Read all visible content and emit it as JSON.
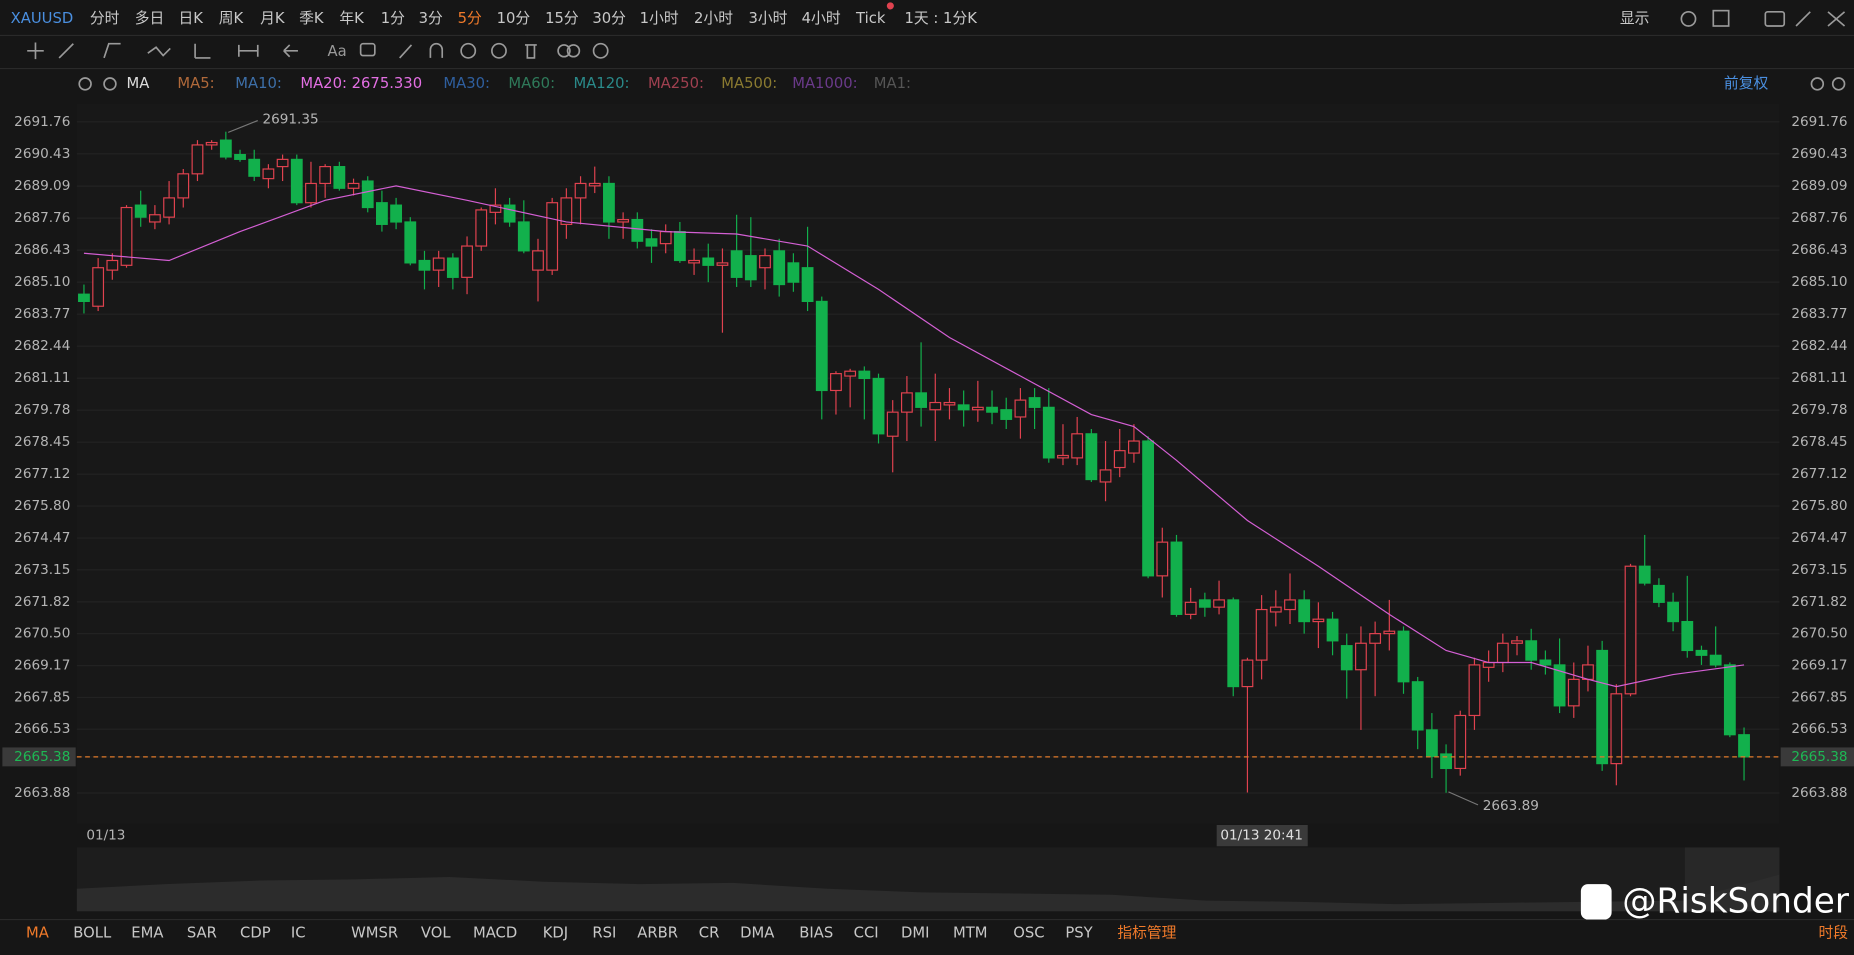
{
  "toolbar": {
    "symbol": "XAUUSD",
    "periods": [
      "分时",
      "多日",
      "日K",
      "周K",
      "月K",
      "季K",
      "年K",
      "1分",
      "3分",
      "5分",
      "10分",
      "15分",
      "30分",
      "1小时",
      "2小时",
      "3小时",
      "4小时",
      "Tick",
      "1天 : 1分K"
    ],
    "selected": "5分",
    "display": "显示",
    "font_tool": "Aa"
  },
  "ma_bar": {
    "name": "MA",
    "items": [
      {
        "text": "MA5:",
        "color": "#b0693a"
      },
      {
        "text": "MA10:",
        "color": "#3d6fa8"
      },
      {
        "text": "MA20: 2675.330",
        "color": "#e36fe3"
      },
      {
        "text": "MA30:",
        "color": "#2f5f9f"
      },
      {
        "text": "MA60:",
        "color": "#2f7a5a"
      },
      {
        "text": "MA120:",
        "color": "#2a8a8a"
      },
      {
        "text": "MA250:",
        "color": "#a04050"
      },
      {
        "text": "MA500:",
        "color": "#8a7a30"
      },
      {
        "text": "MA1000:",
        "color": "#6a3a8a"
      },
      {
        "text": "MA1:",
        "color": "#555555"
      }
    ],
    "adjust": "前复权"
  },
  "indicators": {
    "items": [
      "MA",
      "BOLL",
      "EMA",
      "SAR",
      "CDP",
      "IC",
      "WMSR",
      "VOL",
      "MACD",
      "KDJ",
      "RSI",
      "ARBR",
      "CR",
      "DMA",
      "BIAS",
      "CCI",
      "DMI",
      "MTM",
      "OSC",
      "PSY",
      "指标管理"
    ],
    "session": "时段"
  },
  "watermark": "@RiskSonder",
  "chart_data": {
    "type": "candlestick",
    "open": [
      2684.6,
      2684.1,
      2685.6,
      2685.8,
      2688.3,
      2687.6,
      2687.8,
      2688.6,
      2689.6,
      2690.8,
      2691.0,
      2690.4,
      2690.2,
      2689.4,
      2689.9,
      2690.2,
      2688.4,
      2689.2,
      2689.9,
      2689.0,
      2689.3,
      2688.4,
      2688.3,
      2687.6,
      2686.0,
      2685.6,
      2686.1,
      2685.3,
      2686.6,
      2688.0,
      2688.3,
      2687.6,
      2685.6,
      2685.6,
      2687.5,
      2688.6,
      2689.1,
      2689.2,
      2687.6,
      2687.7,
      2686.9,
      2686.7,
      2687.2,
      2685.9,
      2686.1,
      2685.8,
      2686.4,
      2686.2,
      2685.7,
      2686.4,
      2685.9,
      2685.7,
      2684.3,
      2680.6,
      2681.2,
      2681.4,
      2681.1,
      2678.7,
      2679.7,
      2680.5,
      2679.8,
      2680.0,
      2680.0,
      2679.8,
      2679.9,
      2679.8,
      2679.5,
      2680.3,
      2679.9,
      2677.8,
      2677.8,
      2678.8,
      2676.8,
      2677.4,
      2678.0,
      2678.5,
      2672.9,
      2674.3,
      2671.3,
      2671.9,
      2671.6,
      2671.9,
      2668.3,
      2669.4,
      2671.4,
      2671.5,
      2671.9,
      2671.0,
      2671.1,
      2670.0,
      2669.0,
      2670.1,
      2670.5,
      2670.6,
      2668.5,
      2666.5,
      2665.5,
      2664.9,
      2667.1,
      2669.1,
      2669.3,
      2670.1,
      2670.2,
      2669.4,
      2669.2,
      2667.5,
      2668.6,
      2669.8,
      2665.1,
      2668.0,
      2673.3,
      2672.5,
      2671.8,
      2671.0,
      2669.8,
      2669.6,
      2669.2,
      2666.3
    ],
    "high": [
      2685.0,
      2686.1,
      2686.3,
      2688.3,
      2688.9,
      2688.3,
      2689.3,
      2689.8,
      2691.0,
      2691.0,
      2691.35,
      2690.6,
      2690.6,
      2690.0,
      2690.4,
      2690.4,
      2690.1,
      2690.0,
      2690.1,
      2689.4,
      2689.5,
      2688.9,
      2688.6,
      2687.8,
      2686.4,
      2686.4,
      2686.3,
      2687.0,
      2688.2,
      2689.0,
      2688.6,
      2688.5,
      2686.9,
      2688.6,
      2689.0,
      2689.5,
      2689.9,
      2689.5,
      2688.0,
      2688.0,
      2687.3,
      2687.5,
      2687.6,
      2686.5,
      2686.7,
      2686.5,
      2687.9,
      2687.8,
      2686.5,
      2686.9,
      2686.3,
      2687.4,
      2684.5,
      2681.4,
      2681.5,
      2681.6,
      2681.3,
      2680.2,
      2681.2,
      2682.6,
      2681.3,
      2680.7,
      2680.6,
      2681.0,
      2680.6,
      2680.3,
      2680.7,
      2680.7,
      2680.7,
      2679.2,
      2679.5,
      2679.0,
      2678.5,
      2679.0,
      2679.2,
      2678.7,
      2674.9,
      2674.6,
      2672.4,
      2672.2,
      2672.7,
      2672.0,
      2669.5,
      2672.1,
      2672.3,
      2673.0,
      2672.3,
      2671.8,
      2671.4,
      2670.5,
      2670.8,
      2671.0,
      2671.9,
      2670.8,
      2668.7,
      2667.2,
      2665.9,
      2667.3,
      2669.5,
      2669.8,
      2670.5,
      2670.4,
      2670.7,
      2669.8,
      2670.3,
      2669.3,
      2670.0,
      2670.2,
      2668.4,
      2673.4,
      2674.6,
      2672.8,
      2672.2,
      2672.9,
      2670.0,
      2670.8,
      2669.3,
      2666.6
    ],
    "low": [
      2683.8,
      2683.9,
      2685.2,
      2685.7,
      2687.4,
      2687.3,
      2687.5,
      2688.2,
      2689.3,
      2690.6,
      2690.2,
      2690.1,
      2689.3,
      2689.0,
      2689.3,
      2688.3,
      2688.2,
      2688.6,
      2688.9,
      2688.7,
      2688.0,
      2687.2,
      2687.3,
      2685.8,
      2684.8,
      2684.9,
      2684.8,
      2684.6,
      2686.4,
      2687.5,
      2687.4,
      2686.3,
      2684.3,
      2685.4,
      2686.9,
      2687.5,
      2688.8,
      2686.9,
      2686.9,
      2686.5,
      2685.9,
      2686.3,
      2685.9,
      2685.4,
      2685.1,
      2683.0,
      2684.9,
      2684.9,
      2684.8,
      2684.5,
      2684.7,
      2683.9,
      2679.4,
      2679.6,
      2679.9,
      2679.4,
      2678.4,
      2677.2,
      2678.5,
      2679.1,
      2678.5,
      2679.4,
      2679.1,
      2679.3,
      2679.2,
      2679.0,
      2678.6,
      2679.0,
      2677.6,
      2677.5,
      2677.5,
      2676.8,
      2676.0,
      2677.0,
      2677.6,
      2672.8,
      2672.0,
      2671.2,
      2671.1,
      2671.2,
      2671.3,
      2667.9,
      2663.9,
      2668.6,
      2670.8,
      2670.9,
      2670.5,
      2669.9,
      2669.6,
      2667.8,
      2666.5,
      2667.9,
      2669.8,
      2668.0,
      2665.7,
      2664.5,
      2663.89,
      2664.6,
      2666.5,
      2668.5,
      2668.9,
      2669.6,
      2669.0,
      2668.8,
      2667.2,
      2667.0,
      2668.1,
      2664.8,
      2664.2,
      2667.9,
      2672.5,
      2671.6,
      2670.6,
      2669.5,
      2669.2,
      2669.1,
      2666.2,
      2664.4
    ],
    "close": [
      2684.3,
      2685.7,
      2686.0,
      2688.2,
      2687.8,
      2687.9,
      2688.6,
      2689.6,
      2690.8,
      2690.9,
      2690.3,
      2690.2,
      2689.5,
      2689.8,
      2690.2,
      2688.4,
      2689.2,
      2689.9,
      2689.0,
      2689.2,
      2688.2,
      2687.5,
      2687.6,
      2685.9,
      2685.6,
      2686.1,
      2685.3,
      2686.6,
      2688.1,
      2688.3,
      2687.6,
      2686.4,
      2686.4,
      2688.4,
      2688.6,
      2689.2,
      2689.2,
      2687.6,
      2687.7,
      2686.8,
      2686.6,
      2687.2,
      2686.0,
      2686.0,
      2685.8,
      2685.9,
      2685.3,
      2685.2,
      2686.2,
      2685.0,
      2685.1,
      2684.3,
      2680.6,
      2681.3,
      2681.4,
      2681.1,
      2678.8,
      2679.7,
      2680.5,
      2679.9,
      2680.1,
      2680.1,
      2679.8,
      2679.9,
      2679.7,
      2679.4,
      2680.2,
      2679.9,
      2677.8,
      2677.9,
      2678.8,
      2676.9,
      2677.3,
      2678.1,
      2678.5,
      2672.9,
      2674.3,
      2671.3,
      2671.8,
      2671.6,
      2671.9,
      2668.3,
      2669.4,
      2671.5,
      2671.6,
      2671.9,
      2671.0,
      2671.1,
      2670.2,
      2669.0,
      2670.1,
      2670.5,
      2670.6,
      2668.5,
      2666.5,
      2665.4,
      2664.9,
      2667.1,
      2669.2,
      2669.3,
      2670.1,
      2670.2,
      2669.4,
      2669.2,
      2667.5,
      2668.6,
      2669.2,
      2665.1,
      2668.0,
      2673.3,
      2672.6,
      2671.8,
      2671.0,
      2669.8,
      2669.6,
      2669.2,
      2666.3,
      2665.38
    ],
    "up_color": "#e0424f",
    "down_color": "#12b04c",
    "ma20": {
      "name": "MA20",
      "color": "#d45fd4",
      "x": [
        0,
        6,
        11,
        17,
        22,
        27,
        34,
        41,
        46,
        51,
        56,
        61,
        66,
        71,
        74,
        77,
        82,
        87,
        92,
        96,
        99,
        102,
        106,
        108,
        112,
        117
      ],
      "values": [
        2686.3,
        2686.0,
        2687.2,
        2688.5,
        2689.1,
        2688.5,
        2687.6,
        2687.2,
        2687.1,
        2686.6,
        2684.8,
        2682.8,
        2681.2,
        2679.6,
        2679.1,
        2677.7,
        2675.2,
        2673.3,
        2671.3,
        2669.8,
        2669.3,
        2669.3,
        2668.6,
        2668.3,
        2668.8,
        2669.2
      ]
    },
    "last_price": {
      "value": 2665.38,
      "label": "2665.38",
      "color": "#e07a2a"
    },
    "annotations": [
      "2691.35",
      "2663.89"
    ],
    "x_label": "01/13",
    "crosshair_label": "01/13 20:41",
    "ylim": [
      2662.6,
      2692.5
    ],
    "yticks": [
      2663.88,
      2665.38,
      2666.53,
      2667.85,
      2669.17,
      {
        "value": 2670.5,
        "label": "2670.50"
      },
      2671.82,
      2673.15,
      2674.47,
      {
        "value": 2675.8,
        "label": "2675.80"
      },
      2677.12,
      2678.45,
      2679.78,
      2681.11,
      2682.44,
      2683.77,
      {
        "value": 2685.1,
        "label": "2685.10"
      },
      2686.43,
      2687.76,
      2689.09,
      2690.43,
      2691.76
    ],
    "grid": true
  }
}
